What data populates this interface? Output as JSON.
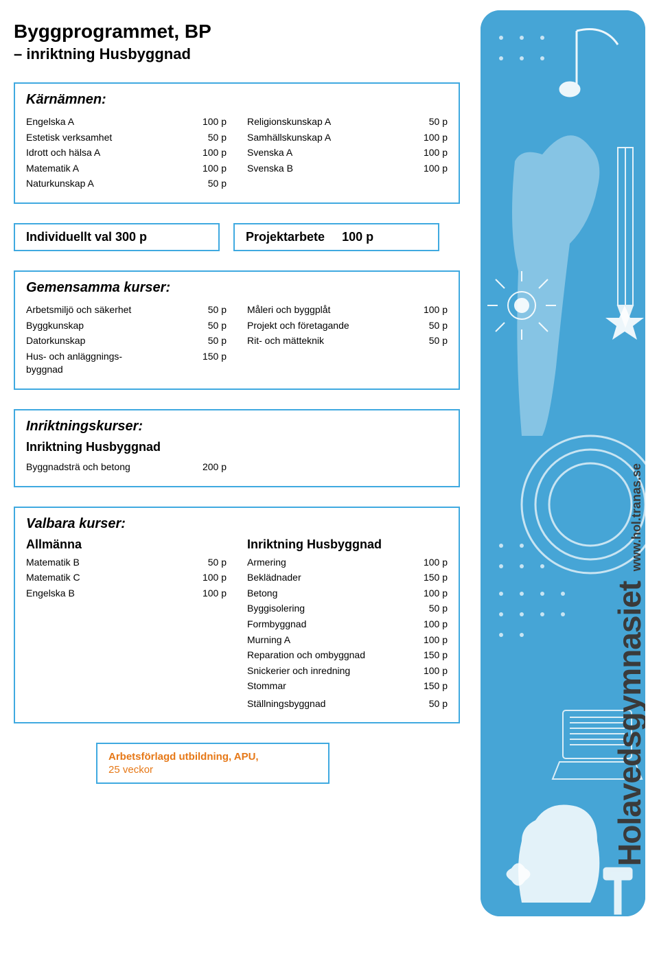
{
  "colors": {
    "border": "#3fa9e0",
    "text": "#000000",
    "accent_orange": "#e67817",
    "sidebar_bg": "#46a5d6",
    "sidebar_text": "#3a3a3a",
    "white": "#ffffff"
  },
  "title": {
    "main": "Byggprogrammet, BP",
    "sub": "– inriktning Husbyggnad"
  },
  "karnamnen": {
    "heading": "Kärnämnen:",
    "left": [
      {
        "name": "Engelska A",
        "pts": "100 p"
      },
      {
        "name": "Estetisk verksamhet",
        "pts": "50 p"
      },
      {
        "name": "Idrott och hälsa A",
        "pts": "100 p"
      },
      {
        "name": "Matematik A",
        "pts": "100 p"
      },
      {
        "name": "Naturkunskap A",
        "pts": "50 p"
      }
    ],
    "right": [
      {
        "name": "Religionskunskap A",
        "pts": "50 p"
      },
      {
        "name": "Samhällskunskap A",
        "pts": "100 p"
      },
      {
        "name": "Svenska A",
        "pts": "100 p"
      },
      {
        "name": "Svenska B",
        "pts": "100 p"
      }
    ]
  },
  "pair": {
    "individ": "Individuellt val 300 p",
    "projekt_label": "Projektarbete",
    "projekt_pts": "100 p"
  },
  "gemensamma": {
    "heading": "Gemensamma kurser:",
    "left": [
      {
        "name": "Arbetsmiljö och säkerhet",
        "pts": "50 p"
      },
      {
        "name": "Byggkunskap",
        "pts": "50 p"
      },
      {
        "name": "Datorkunskap",
        "pts": "50 p"
      },
      {
        "name": "Hus- och anläggnings-\nbyggnad",
        "pts": "150 p"
      }
    ],
    "right": [
      {
        "name": "Måleri och byggplåt",
        "pts": "100 p"
      },
      {
        "name": "Projekt och företagande",
        "pts": "50 p"
      },
      {
        "name": "Rit- och mätteknik",
        "pts": "50 p"
      }
    ]
  },
  "inriktning": {
    "heading": "Inriktningskurser:",
    "sub": "Inriktning Husbyggnad",
    "items": [
      {
        "name": "Byggnadsträ och betong",
        "pts": "200 p"
      }
    ]
  },
  "valbara": {
    "heading": "Valbara kurser:",
    "left_sub": "Allmänna",
    "left": [
      {
        "name": "Matematik B",
        "pts": "50 p"
      },
      {
        "name": "Matematik C",
        "pts": "100 p"
      },
      {
        "name": "Engelska B",
        "pts": "100 p"
      }
    ],
    "right_sub": "Inriktning Husbyggnad",
    "right": [
      {
        "name": "Armering",
        "pts": "100 p"
      },
      {
        "name": "Beklädnader",
        "pts": "150 p"
      },
      {
        "name": "Betong",
        "pts": "100 p"
      },
      {
        "name": "Byggisolering",
        "pts": "50 p"
      },
      {
        "name": "Formbyggnad",
        "pts": "100 p"
      },
      {
        "name": "Murning A",
        "pts": "100 p"
      },
      {
        "name": "Reparation och ombyggnad",
        "pts": "150 p"
      },
      {
        "name": "Snickerier och inredning",
        "pts": "100 p"
      },
      {
        "name": "Stommar",
        "pts": "150 p"
      }
    ],
    "right_extra": {
      "name": "Ställningsbyggnad",
      "pts": "50 p"
    }
  },
  "apu": {
    "title": "Arbetsförlagd utbildning, APU,",
    "sub": "25 veckor"
  },
  "sidebar": {
    "brand": "Holavedsgymnasiet",
    "url": "www.hol.tranas.se"
  }
}
